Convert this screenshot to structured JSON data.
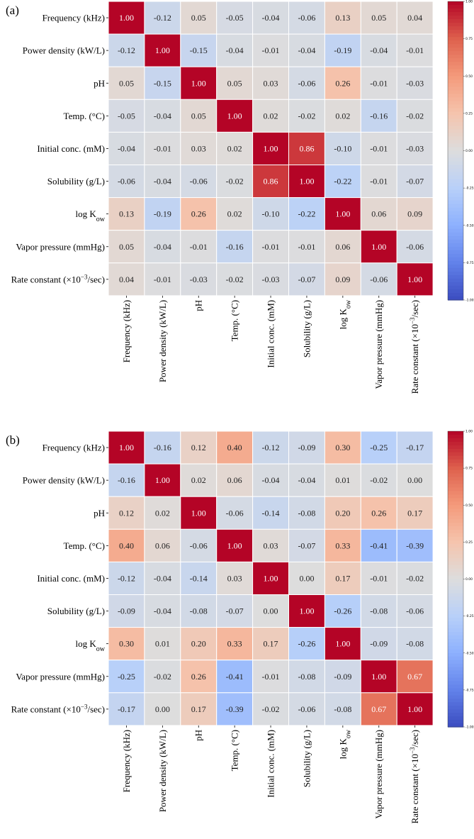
{
  "chart_data": [
    {
      "type": "heatmap",
      "panel_label": "(a)",
      "row_labels": [
        {
          "main": "Frequency (kHz)",
          "sup": "",
          "sub": "",
          "tail": ""
        },
        {
          "main": "Power density (kW/L)",
          "sup": "",
          "sub": "",
          "tail": ""
        },
        {
          "main": "pH",
          "sup": "",
          "sub": "",
          "tail": ""
        },
        {
          "main": "Temp. (°C)",
          "sup": "",
          "sub": "",
          "tail": ""
        },
        {
          "main": "Initial conc. (mM)",
          "sup": "",
          "sub": "",
          "tail": ""
        },
        {
          "main": "Solubility (g/L)",
          "sup": "",
          "sub": "",
          "tail": ""
        },
        {
          "main": "log K",
          "sup": "",
          "sub": "ow",
          "tail": ""
        },
        {
          "main": "Vapor pressure (mmHg)",
          "sup": "",
          "sub": "",
          "tail": ""
        },
        {
          "main": "Rate constant (×10",
          "sup": "−3",
          "sub": "",
          "tail": "/sec)"
        }
      ],
      "values": [
        [
          1.0,
          -0.12,
          0.05,
          -0.05,
          -0.04,
          -0.06,
          0.13,
          0.05,
          0.04
        ],
        [
          -0.12,
          1.0,
          -0.15,
          -0.04,
          -0.01,
          -0.04,
          -0.19,
          -0.04,
          -0.01
        ],
        [
          0.05,
          -0.15,
          1.0,
          0.05,
          0.03,
          -0.06,
          0.26,
          -0.01,
          -0.03
        ],
        [
          -0.05,
          -0.04,
          0.05,
          1.0,
          0.02,
          -0.02,
          0.02,
          -0.16,
          -0.02
        ],
        [
          -0.04,
          -0.01,
          0.03,
          0.02,
          1.0,
          0.86,
          -0.1,
          -0.01,
          -0.03
        ],
        [
          -0.06,
          -0.04,
          -0.06,
          -0.02,
          0.86,
          1.0,
          -0.22,
          -0.01,
          -0.07
        ],
        [
          0.13,
          -0.19,
          0.26,
          0.02,
          -0.1,
          -0.22,
          1.0,
          0.06,
          0.09
        ],
        [
          0.05,
          -0.04,
          -0.01,
          -0.16,
          -0.01,
          -0.01,
          0.06,
          1.0,
          -0.06
        ],
        [
          0.04,
          -0.01,
          -0.03,
          -0.02,
          -0.03,
          -0.07,
          0.09,
          -0.06,
          1.0
        ]
      ],
      "colorbar": {
        "min": -1.0,
        "max": 1.0,
        "ticks": [
          "1.00",
          "0.75",
          "0.50",
          "0.25",
          "0.00",
          "-0.25",
          "-0.50",
          "-0.75",
          "-1.00"
        ]
      }
    },
    {
      "type": "heatmap",
      "panel_label": "(b)",
      "row_labels": [
        {
          "main": "Frequency (kHz)",
          "sup": "",
          "sub": "",
          "tail": ""
        },
        {
          "main": "Power density (kW/L)",
          "sup": "",
          "sub": "",
          "tail": ""
        },
        {
          "main": "pH",
          "sup": "",
          "sub": "",
          "tail": ""
        },
        {
          "main": "Temp. (°C)",
          "sup": "",
          "sub": "",
          "tail": ""
        },
        {
          "main": "Initial conc. (mM)",
          "sup": "",
          "sub": "",
          "tail": ""
        },
        {
          "main": "Solubility (g/L)",
          "sup": "",
          "sub": "",
          "tail": ""
        },
        {
          "main": "log K",
          "sup": "",
          "sub": "ow",
          "tail": ""
        },
        {
          "main": "Vapor pressure (mmHg)",
          "sup": "",
          "sub": "",
          "tail": ""
        },
        {
          "main": "Rate constant (×10",
          "sup": "−3",
          "sub": "",
          "tail": "/sec)"
        }
      ],
      "values": [
        [
          1.0,
          -0.16,
          0.12,
          0.4,
          -0.12,
          -0.09,
          0.3,
          -0.25,
          -0.17
        ],
        [
          -0.16,
          1.0,
          0.02,
          0.06,
          -0.04,
          -0.04,
          0.01,
          -0.02,
          -0.0
        ],
        [
          0.12,
          0.02,
          1.0,
          -0.06,
          -0.14,
          -0.08,
          0.2,
          0.26,
          0.17
        ],
        [
          0.4,
          0.06,
          -0.06,
          1.0,
          0.03,
          -0.07,
          0.33,
          -0.41,
          -0.39
        ],
        [
          -0.12,
          -0.04,
          -0.14,
          0.03,
          1.0,
          -0.0,
          0.17,
          -0.01,
          -0.02
        ],
        [
          -0.09,
          -0.04,
          -0.08,
          -0.07,
          -0.0,
          1.0,
          -0.26,
          -0.08,
          -0.06
        ],
        [
          0.3,
          0.01,
          0.2,
          0.33,
          0.17,
          -0.26,
          1.0,
          -0.09,
          -0.08
        ],
        [
          -0.25,
          -0.02,
          0.26,
          -0.41,
          -0.01,
          -0.08,
          -0.09,
          1.0,
          0.67
        ],
        [
          -0.17,
          -0.0,
          0.17,
          -0.39,
          -0.02,
          -0.06,
          -0.08,
          0.67,
          1.0
        ]
      ],
      "colorbar": {
        "min": -1.0,
        "max": 1.0,
        "ticks": [
          "1.00",
          "0.75",
          "0.50",
          "0.25",
          "0.00",
          "-0.25",
          "-0.50",
          "-0.75",
          "-1.00"
        ]
      }
    }
  ]
}
